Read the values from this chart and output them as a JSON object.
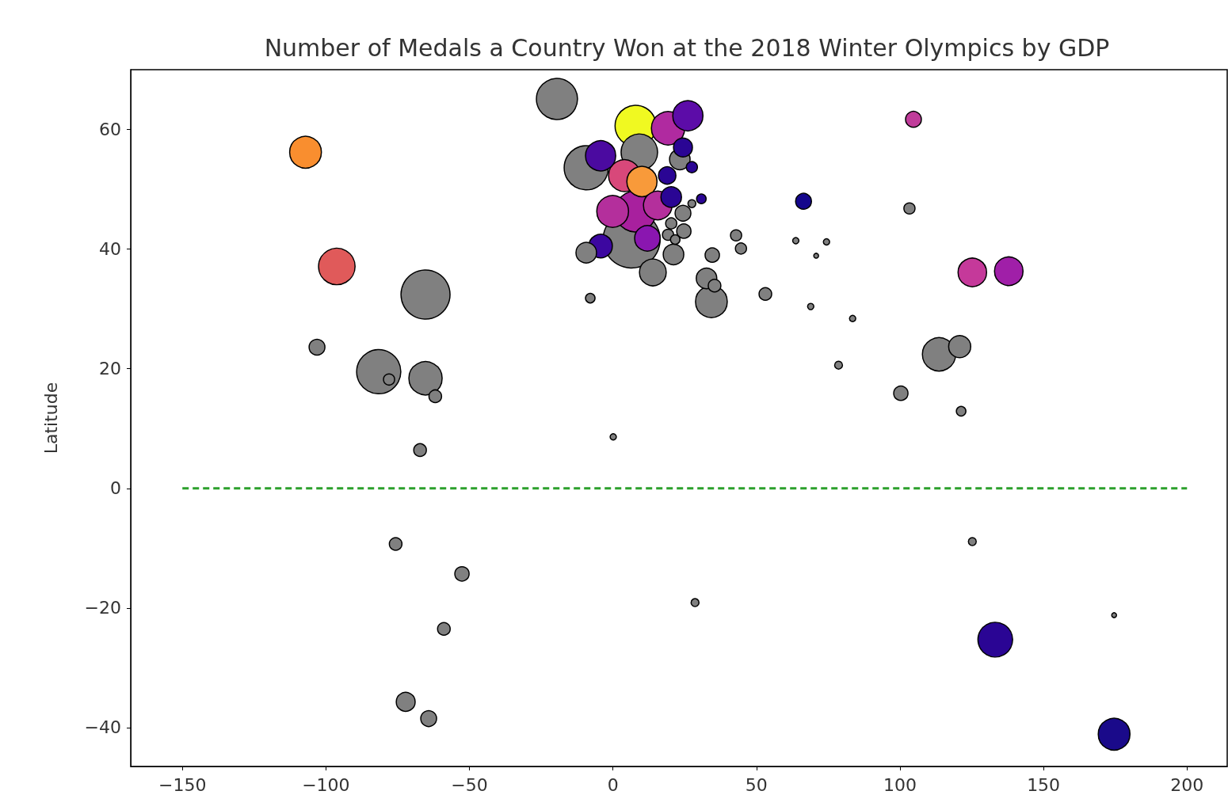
{
  "chart_data": {
    "type": "bubble",
    "title": "Number of Medals a Country Won at the 2018 Winter Olympics by GDP",
    "ylabel": "Latitude",
    "xlim": [
      -168,
      214
    ],
    "ylim": [
      -46.5,
      70
    ],
    "xticks": [
      -150,
      -100,
      -50,
      0,
      50,
      100,
      150,
      200
    ],
    "yticks": [
      -40,
      -20,
      0,
      20,
      40,
      60
    ],
    "grid": false,
    "marker": "circle",
    "series": [
      {
        "type": "bubble",
        "x": [
          6.5,
          -65.3,
          -81.6,
          -9.3,
          -19.5,
          7.9,
          7.9,
          9.2,
          -96.2,
          133.2,
          -65.3,
          113.6,
          19.2,
          4.0,
          -0.1,
          -107.1,
          174.6,
          34.3,
          10.1,
          -4.3,
          26.1,
          15.6,
          125.2,
          137.9,
          13.9,
          12.0,
          -4.3,
          120.8,
          32.6,
          23.3,
          -9.3,
          21.1,
          24.4,
          20.3,
          -72.2,
          18.9,
          -103.1,
          104.7,
          66.4,
          24.4,
          -64.2,
          34.6,
          100.3,
          53.1,
          -61.9,
          -67.2,
          -75.7,
          -58.9,
          24.7,
          -52.6,
          35.4,
          27.5,
          103.3,
          42.9,
          44.6,
          20.3,
          19.2,
          121.3,
          21.7,
          30.8,
          -7.9,
          -78,
          27.5,
          28.6,
          125.2,
          78.6,
          0.1,
          83.5,
          68.9,
          63.7,
          74.4,
          70.8,
          174.6
        ],
        "values": [
          41.6,
          32.4,
          19.5,
          53.6,
          65.1,
          46.3,
          60.6,
          56.2,
          37.1,
          -25.3,
          18.4,
          22.4,
          60.2,
          52.3,
          46.3,
          56.2,
          -41.1,
          31.2,
          51.3,
          55.6,
          62.3,
          47.3,
          36.1,
          36.3,
          36.1,
          41.8,
          40.5,
          23.7,
          35.1,
          55.0,
          39.4,
          39.1,
          57.0,
          48.7,
          -35.7,
          52.3,
          23.6,
          61.7,
          48.0,
          46.0,
          -38.5,
          39.0,
          15.9,
          32.5,
          15.4,
          6.4,
          -9.3,
          -23.5,
          43.0,
          -14.3,
          33.9,
          53.7,
          46.8,
          42.3,
          40.1,
          44.3,
          42.4,
          12.9,
          41.6,
          48.4,
          31.8,
          18.2,
          47.6,
          -19.1,
          -8.9,
          20.6,
          8.6,
          28.4,
          30.4,
          41.4,
          41.2,
          38.9,
          -21.2
        ],
        "sizes": [
          1,
          0.74,
          0.6,
          0.6,
          0.52,
          0.52,
          0.52,
          0.41,
          0.41,
          0.37,
          0.34,
          0.34,
          0.34,
          0.31,
          0.31,
          0.31,
          0.31,
          0.31,
          0.28,
          0.28,
          0.28,
          0.25,
          0.25,
          0.25,
          0.22,
          0.2,
          0.17,
          0.15,
          0.13,
          0.13,
          0.13,
          0.13,
          0.11,
          0.13,
          0.11,
          0.093,
          0.077,
          0.077,
          0.077,
          0.077,
          0.077,
          0.063,
          0.063,
          0.049,
          0.049,
          0.049,
          0.049,
          0.049,
          0.063,
          0.063,
          0.049,
          0.038,
          0.038,
          0.038,
          0.038,
          0.038,
          0.038,
          0.028,
          0.028,
          0.028,
          0.028,
          0.038,
          0.019,
          0.019,
          0.019,
          0.019,
          0.012,
          0.012,
          0.012,
          0.012,
          0.012,
          0.007,
          0.007
        ],
        "colors": [
          "#808080",
          "#808080",
          "#808080",
          "#808080",
          "#808080",
          "#a8209e",
          "#f0f921",
          "#808080",
          "#e05a5a",
          "#2a0594",
          "#808080",
          "#808080",
          "#b02aa0",
          "#d8487a",
          "#b42f9c",
          "#f98e2f",
          "#1a0a8a",
          "#808080",
          "#f89a3a",
          "#4b0aa0",
          "#5c0ca8",
          "#b42f9c",
          "#c5399a",
          "#a01fa8",
          "#808080",
          "#8a16b0",
          "#3c07a0",
          "#808080",
          "#808080",
          "#808080",
          "#808080",
          "#808080",
          "#2a0594",
          "#2a0594",
          "#808080",
          "#2a0594",
          "#808080",
          "#c03c9a",
          "#14068c",
          "#808080",
          "#808080",
          "#808080",
          "#808080",
          "#808080",
          "#808080",
          "#808080",
          "#808080",
          "#808080",
          "#808080",
          "#808080",
          "#808080",
          "#2a0594",
          "#808080",
          "#808080",
          "#808080",
          "#808080",
          "#808080",
          "#808080",
          "#808080",
          "#2a0594",
          "#808080",
          "#808080",
          "#808080",
          "#808080",
          "#808080",
          "#808080",
          "#808080",
          "#808080",
          "#808080",
          "#808080",
          "#808080",
          "#808080",
          "#808080"
        ]
      },
      {
        "type": "line",
        "x": [
          -150,
          200
        ],
        "values": [
          0,
          0
        ],
        "color": "#2ca02c",
        "line_style": "dashed",
        "marker": "none"
      }
    ]
  }
}
